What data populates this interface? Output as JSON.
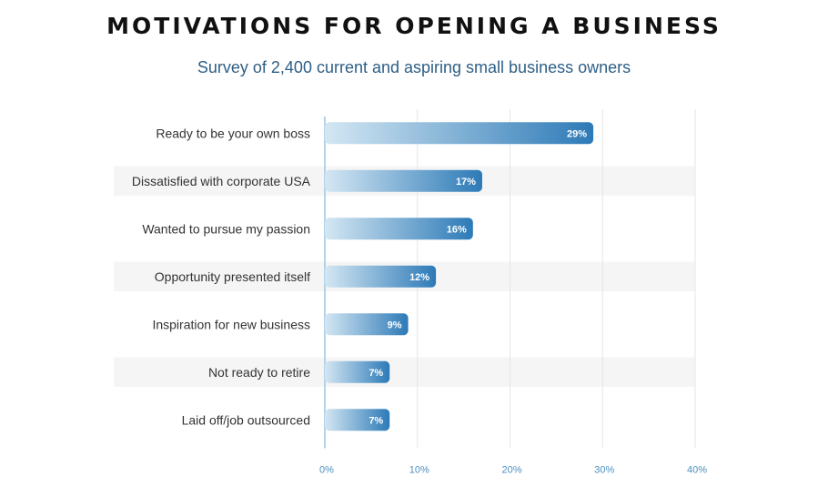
{
  "chart_data": {
    "type": "bar",
    "orientation": "horizontal",
    "title": "MOTIVATIONS FOR OPENING A BUSINESS",
    "subtitle": "Survey of 2,400 current and aspiring small business owners",
    "categories": [
      "Ready to be your own boss",
      "Dissatisfied with corporate USA",
      "Wanted to pursue my passion",
      "Opportunity presented itself",
      "Inspiration for new business",
      "Not ready to retire",
      "Laid off/job outsourced"
    ],
    "values": [
      29,
      17,
      16,
      12,
      9,
      7,
      7
    ],
    "value_labels": [
      "29%",
      "17%",
      "16%",
      "12%",
      "9%",
      "7%",
      "7%"
    ],
    "xlim": [
      0,
      40
    ],
    "xticks": [
      0,
      10,
      20,
      30,
      40
    ],
    "xtick_labels": [
      "0%",
      "10%",
      "20%",
      "30%",
      "40%"
    ],
    "grid": true,
    "colors": {
      "bar_start": "#d4e7f3",
      "bar_end": "#2d7ab7",
      "band": "#f5f5f5",
      "grid": "#e6e6e6",
      "axis": "#9cc6e3",
      "tick_text": "#4c8fc0",
      "label_text": "#333333",
      "value_text": "#ffffff"
    }
  }
}
